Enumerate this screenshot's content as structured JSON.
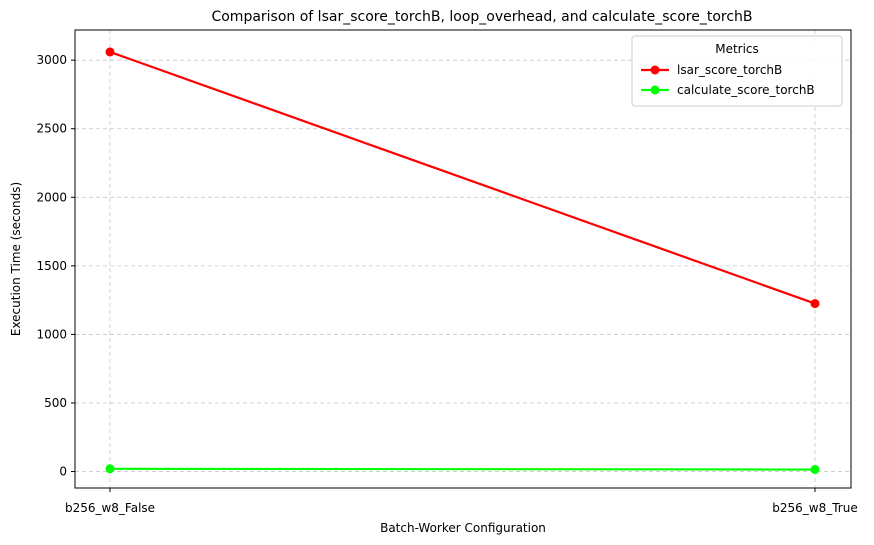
{
  "chart_data": {
    "type": "line",
    "title": "Comparison of lsar_score_torchB, loop_overhead, and calculate_score_torchB",
    "xlabel": "Batch-Worker Configuration",
    "ylabel": "Execution Time (seconds)",
    "categories": [
      "b256_w8_False",
      "b256_w8_True"
    ],
    "ylim": [
      -120,
      3220
    ],
    "yticks": [
      0,
      500,
      1000,
      1500,
      2000,
      2500,
      3000
    ],
    "grid": true,
    "legend": {
      "title": "Metrics",
      "placement": "top-right"
    },
    "series": [
      {
        "name": "lsar_score_torchB",
        "color": "#ff0000",
        "values": [
          3060,
          1225
        ]
      },
      {
        "name": "calculate_score_torchB",
        "color": "#00ff00",
        "values": [
          20,
          15
        ]
      }
    ]
  }
}
